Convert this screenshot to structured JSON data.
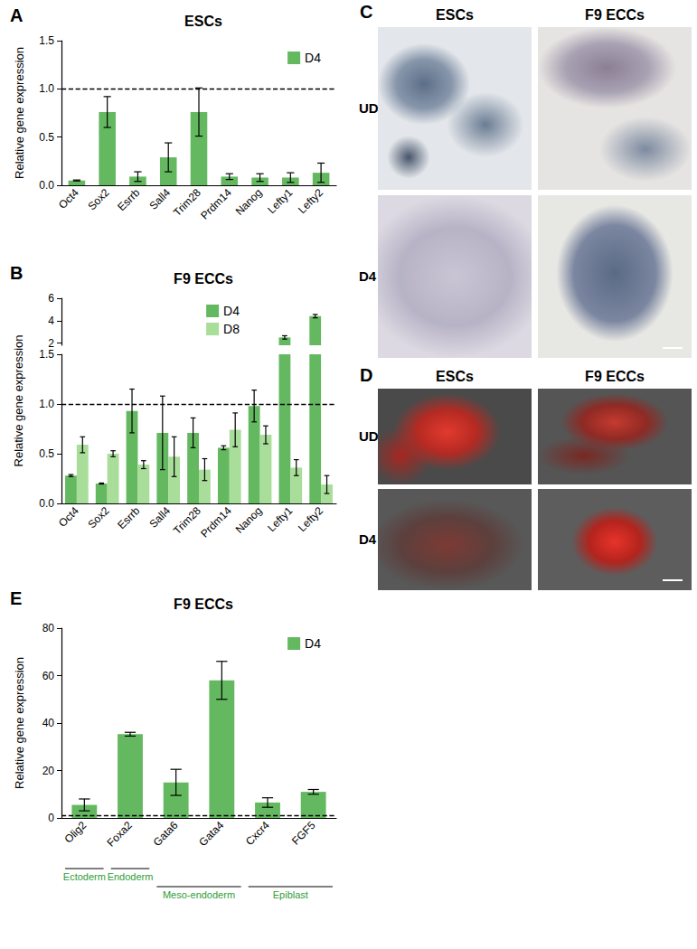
{
  "chart_data": [
    {
      "type": "bar",
      "panel": "A",
      "title": "ESCs",
      "ylabel": "Relative gene expression",
      "categories": [
        "Oct4",
        "Sox2",
        "Esrrb",
        "Sall4",
        "Trim28",
        "Prdm14",
        "Nanog",
        "Lefty1",
        "Lefty2"
      ],
      "series": [
        {
          "name": "D4",
          "color": "#64b960",
          "values": [
            0.05,
            0.76,
            0.09,
            0.29,
            0.76,
            0.09,
            0.08,
            0.08,
            0.13
          ],
          "errors": [
            0.005,
            0.16,
            0.05,
            0.15,
            0.25,
            0.03,
            0.04,
            0.05,
            0.1
          ]
        }
      ],
      "ylim": [
        0,
        1.5
      ],
      "yticks": [
        {
          "value": 0,
          "label": "0.0"
        },
        0.5,
        {
          "value": 1,
          "label": "1.0"
        },
        1.5
      ],
      "reference_line": 1,
      "legend": "upper right",
      "grid": false
    },
    {
      "type": "bar",
      "panel": "B",
      "title": "F9 ECCs",
      "ylabel": "Relative gene expression",
      "categories": [
        "Oct4",
        "Sox2",
        "Esrrb",
        "Sall4",
        "Trim28",
        "Prdm14",
        "Nanog",
        "Lefty1",
        "Lefty2"
      ],
      "series": [
        {
          "name": "D4",
          "color": "#64b960",
          "values": [
            0.28,
            0.2,
            0.93,
            0.71,
            0.71,
            0.56,
            0.98,
            2.5,
            4.4
          ],
          "errors": [
            0.01,
            0.005,
            0.22,
            0.37,
            0.15,
            0.02,
            0.16,
            0.15,
            0.15
          ]
        },
        {
          "name": "D8",
          "color": "#a9dd9a",
          "values": [
            0.59,
            0.5,
            0.39,
            0.47,
            0.34,
            0.74,
            0.69,
            0.36,
            0.19
          ],
          "errors": [
            0.08,
            0.03,
            0.04,
            0.2,
            0.11,
            0.17,
            0.09,
            0.08,
            0.09
          ]
        }
      ],
      "ylim": [
        0,
        6
      ],
      "y_break": [
        1.5,
        1.8
      ],
      "yticks": [
        {
          "value": 0,
          "label": "0.0"
        },
        0.5,
        {
          "value": 1,
          "label": "1.0"
        },
        1.5,
        2,
        4,
        6
      ],
      "reference_line": 1,
      "legend": "upper right",
      "grid": false
    },
    {
      "type": "bar",
      "panel": "E",
      "title": "F9 ECCs",
      "ylabel": "Relative gene expression",
      "categories": [
        "Olig2",
        "Foxa2",
        "Gata6",
        "Gata4",
        "Cxcr4",
        "FGF5"
      ],
      "series": [
        {
          "name": "D4",
          "color": "#64b960",
          "values": [
            5.5,
            35.3,
            15,
            58,
            6.5,
            11
          ],
          "errors": [
            2.5,
            0.8,
            5.5,
            8,
            2,
            1
          ]
        }
      ],
      "ylim": [
        0,
        80
      ],
      "yticks": [
        0,
        20,
        40,
        60,
        80
      ],
      "reference_line": 1,
      "legend": "upper right",
      "grid": false,
      "groups": [
        {
          "label": "Ectoderm",
          "categories": [
            "Olig2"
          ]
        },
        {
          "label": "Endoderm",
          "categories": [
            "Foxa2"
          ]
        },
        {
          "label": "Meso-endoderm",
          "categories": [
            "Gata6",
            "Gata4"
          ]
        },
        {
          "label": "Epiblast",
          "categories": [
            "Cxcr4",
            "FGF5"
          ]
        }
      ]
    }
  ],
  "image_panels": [
    {
      "panel": "C",
      "columns": [
        "ESCs",
        "F9 ECCs"
      ],
      "rows": [
        "UD",
        "D4"
      ]
    },
    {
      "panel": "D",
      "columns": [
        "ESCs",
        "F9 ECCs"
      ],
      "rows": [
        "UD",
        "D4"
      ]
    }
  ]
}
